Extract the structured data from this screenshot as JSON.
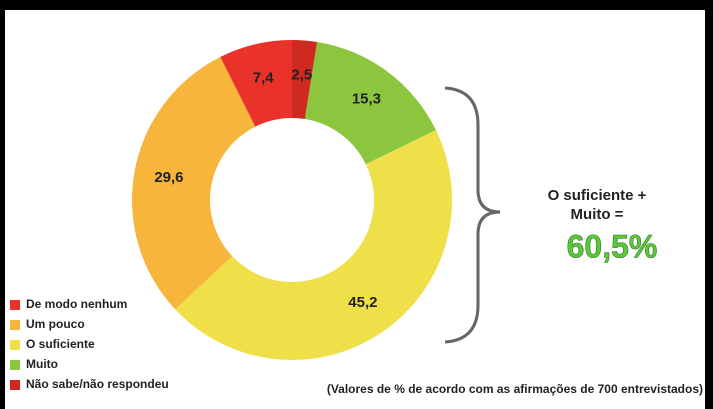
{
  "chart_data": {
    "type": "pie",
    "categories": [
      "De modo nenhum",
      "Um pouco",
      "O suficiente",
      "Muito",
      "Não sabe/não respondeu"
    ],
    "values": [
      7.4,
      29.6,
      45.2,
      15.3,
      2.5
    ],
    "value_labels": [
      "7,4",
      "29,6",
      "45,2",
      "15,3",
      "2,5"
    ],
    "colors": [
      "#e8322a",
      "#f7b53b",
      "#efe04a",
      "#8cc63f",
      "#cf2a1f"
    ],
    "direction": "counterclockwise",
    "annotation": [
      "O suficiente +",
      "Muito ="
    ],
    "annotation_value": "60,5%",
    "footnote": "(Valores de % de acordo com as afirmações de 700 entrevistados)"
  }
}
